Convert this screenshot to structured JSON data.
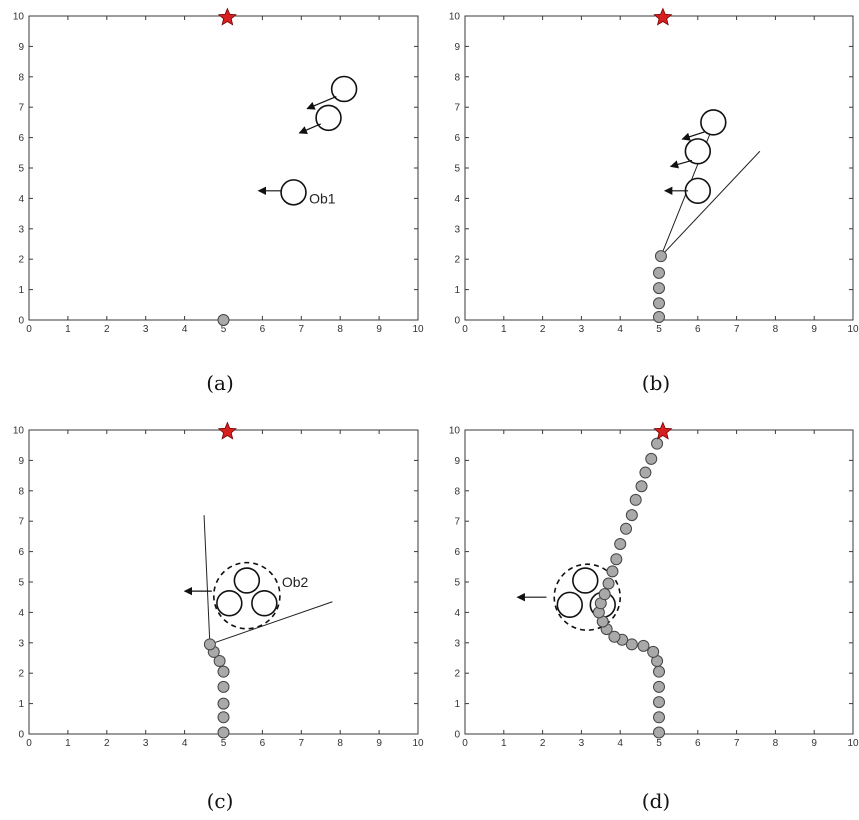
{
  "colors": {
    "frame": "#3a3a3a",
    "robot_fill": "#a9a9a9",
    "robot_stroke": "#444444",
    "goal": "#d62020",
    "obstacle_stroke": "#111111"
  },
  "axes": {
    "xlim": [
      0,
      10
    ],
    "ylim": [
      0,
      10
    ],
    "xticks": [
      "0",
      "1",
      "2",
      "3",
      "4",
      "5",
      "6",
      "7",
      "8",
      "9",
      "10"
    ],
    "yticks": [
      "0",
      "1",
      "2",
      "3",
      "4",
      "5",
      "6",
      "7",
      "8",
      "9",
      "10"
    ],
    "grid": false
  },
  "chart_data": [
    {
      "type": "scatter",
      "caption": "(a)",
      "goal": [
        5.1,
        9.95
      ],
      "robot_path": [
        [
          5.0,
          0.0
        ]
      ],
      "obstacles": [
        [
          8.1,
          7.6
        ],
        [
          7.7,
          6.65
        ],
        [
          6.8,
          4.2
        ]
      ],
      "obstacle_radius": 0.32,
      "groups": [],
      "arrows": [
        {
          "from": [
            7.9,
            7.35
          ],
          "to": [
            7.15,
            6.95
          ]
        },
        {
          "from": [
            7.5,
            6.45
          ],
          "to": [
            6.95,
            6.15
          ]
        },
        {
          "from": [
            6.5,
            4.25
          ],
          "to": [
            5.9,
            4.25
          ]
        }
      ],
      "cone_lines": [],
      "annotations": [
        {
          "text": "Ob1",
          "at": [
            7.2,
            4.0
          ]
        }
      ]
    },
    {
      "type": "scatter",
      "caption": "(b)",
      "goal": [
        5.1,
        9.95
      ],
      "robot_path": [
        [
          5.0,
          0.1
        ],
        [
          5.0,
          0.55
        ],
        [
          5.0,
          1.05
        ],
        [
          5.0,
          1.55
        ],
        [
          5.05,
          2.1
        ]
      ],
      "obstacles": [
        [
          6.4,
          6.5
        ],
        [
          6.0,
          5.55
        ],
        [
          6.0,
          4.25
        ]
      ],
      "obstacle_radius": 0.32,
      "groups": [],
      "arrows": [
        {
          "from": [
            6.2,
            6.2
          ],
          "to": [
            5.6,
            5.95
          ]
        },
        {
          "from": [
            5.85,
            5.25
          ],
          "to": [
            5.3,
            5.05
          ]
        },
        {
          "from": [
            5.75,
            4.25
          ],
          "to": [
            5.15,
            4.25
          ]
        }
      ],
      "cone_lines": [
        {
          "from": [
            5.05,
            2.1
          ],
          "to": [
            6.4,
            6.4
          ]
        },
        {
          "from": [
            5.05,
            2.1
          ],
          "to": [
            7.6,
            5.55
          ]
        }
      ],
      "annotations": []
    },
    {
      "type": "scatter",
      "caption": "(c)",
      "goal": [
        5.1,
        9.95
      ],
      "robot_path": [
        [
          5.0,
          0.05
        ],
        [
          5.0,
          0.55
        ],
        [
          5.0,
          1.0
        ],
        [
          5.0,
          1.55
        ],
        [
          5.0,
          2.05
        ],
        [
          4.9,
          2.4
        ],
        [
          4.75,
          2.7
        ],
        [
          4.65,
          2.95
        ]
      ],
      "obstacles": [
        [
          5.6,
          5.05
        ],
        [
          5.15,
          4.3
        ],
        [
          6.05,
          4.3
        ]
      ],
      "obstacle_radius": 0.32,
      "groups": [
        {
          "center": [
            5.6,
            4.55
          ],
          "radius": 0.85
        }
      ],
      "arrows": [
        {
          "from": [
            4.7,
            4.7
          ],
          "to": [
            4.0,
            4.7
          ]
        }
      ],
      "cone_lines": [
        {
          "from": [
            4.65,
            2.95
          ],
          "to": [
            4.5,
            7.2
          ]
        },
        {
          "from": [
            4.65,
            2.95
          ],
          "to": [
            7.8,
            4.35
          ]
        }
      ],
      "annotations": [
        {
          "text": "Ob2",
          "at": [
            6.5,
            5.0
          ]
        }
      ]
    },
    {
      "type": "scatter",
      "caption": "(d)",
      "goal": [
        5.1,
        9.95
      ],
      "robot_path": [
        [
          5.0,
          0.05
        ],
        [
          5.0,
          0.55
        ],
        [
          5.0,
          1.05
        ],
        [
          5.0,
          1.55
        ],
        [
          5.0,
          2.05
        ],
        [
          4.95,
          2.4
        ],
        [
          4.85,
          2.7
        ],
        [
          4.6,
          2.9
        ],
        [
          4.3,
          2.95
        ],
        [
          4.05,
          3.1
        ],
        [
          3.85,
          3.2
        ],
        [
          3.65,
          3.45
        ],
        [
          3.55,
          3.7
        ],
        [
          3.45,
          4.0
        ],
        [
          3.5,
          4.3
        ],
        [
          3.6,
          4.6
        ],
        [
          3.7,
          4.95
        ],
        [
          3.8,
          5.35
        ],
        [
          3.9,
          5.75
        ],
        [
          4.0,
          6.25
        ],
        [
          4.15,
          6.75
        ],
        [
          4.3,
          7.2
        ],
        [
          4.4,
          7.7
        ],
        [
          4.55,
          8.15
        ],
        [
          4.65,
          8.6
        ],
        [
          4.8,
          9.05
        ],
        [
          4.95,
          9.55
        ]
      ],
      "obstacles": [
        [
          3.1,
          5.05
        ],
        [
          2.7,
          4.25
        ],
        [
          3.55,
          4.25
        ]
      ],
      "obstacle_radius": 0.32,
      "groups": [
        {
          "center": [
            3.15,
            4.5
          ],
          "radius": 0.85
        }
      ],
      "arrows": [
        {
          "from": [
            2.1,
            4.5
          ],
          "to": [
            1.35,
            4.5
          ]
        }
      ],
      "cone_lines": [],
      "annotations": []
    }
  ]
}
